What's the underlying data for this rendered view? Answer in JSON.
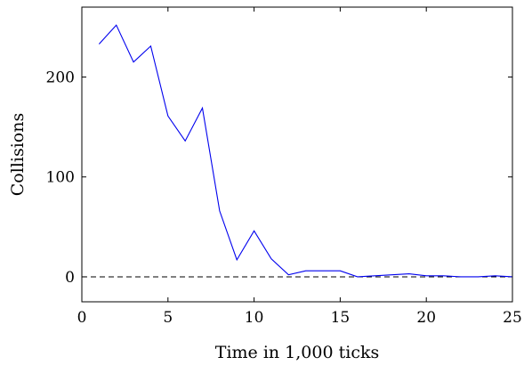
{
  "chart_data": {
    "type": "line",
    "title": "",
    "xlabel": "Time in 1,000 ticks",
    "ylabel": "Collisions",
    "xlim": [
      0,
      25
    ],
    "ylim": [
      -25,
      270
    ],
    "x_ticks": [
      0,
      5,
      10,
      15,
      20,
      25
    ],
    "x_tick_labels": [
      "0",
      "5",
      "10",
      "15",
      "20",
      "25"
    ],
    "y_ticks": [
      0,
      100,
      200
    ],
    "y_tick_labels": [
      "0",
      "100",
      "200"
    ],
    "grid": false,
    "legend": "none",
    "reference_line": {
      "y": 0,
      "style": "dashed",
      "color": "#000000"
    },
    "series": [
      {
        "color": "#0000ee",
        "x": [
          1,
          2,
          3,
          4,
          5,
          6,
          7,
          8,
          9,
          10,
          11,
          12,
          13,
          14,
          15,
          16,
          17,
          18,
          19,
          20,
          21,
          22,
          23,
          24,
          25
        ],
        "y": [
          233,
          252,
          215,
          231,
          161,
          136,
          169,
          66,
          17,
          46,
          18,
          2,
          6,
          6,
          6,
          0,
          1,
          2,
          3,
          1,
          1,
          0,
          0,
          1,
          0
        ]
      }
    ]
  }
}
